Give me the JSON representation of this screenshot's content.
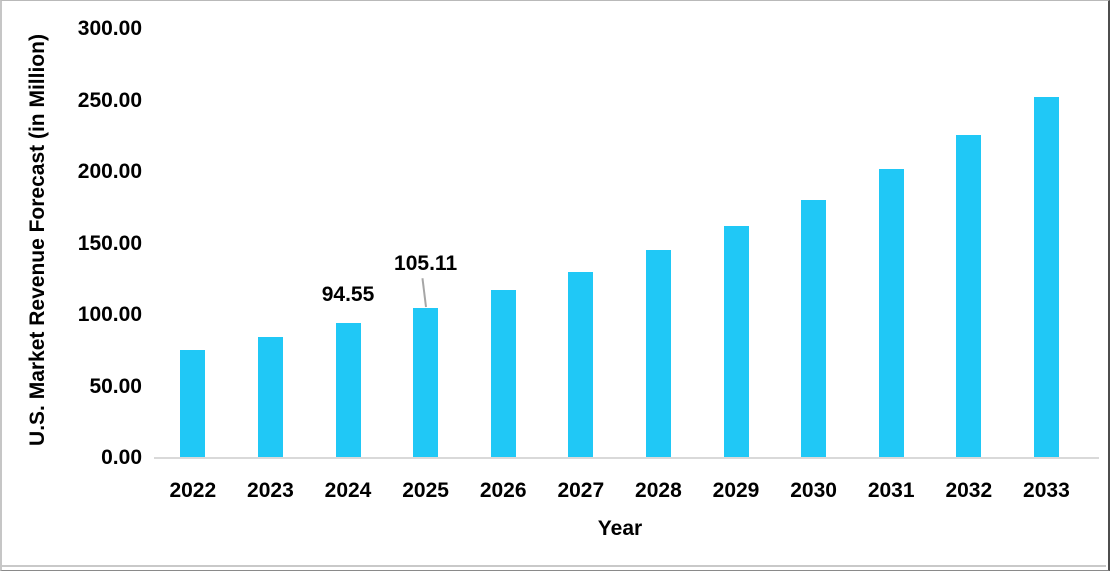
{
  "chart_data": {
    "type": "bar",
    "title": "",
    "categories": [
      "2022",
      "2023",
      "2024",
      "2025",
      "2026",
      "2027",
      "2028",
      "2029",
      "2030",
      "2031",
      "2032",
      "2033"
    ],
    "values": [
      75.5,
      84.5,
      94.55,
      105.11,
      117.8,
      130.4,
      145.8,
      162.1,
      180.7,
      202.0,
      226.1,
      252.7
    ],
    "data_labels": [
      {
        "index": 2,
        "text": "94.55",
        "lift": 16,
        "leader": false
      },
      {
        "index": 3,
        "text": "105.11",
        "lift": 32,
        "leader": true
      }
    ],
    "xlabel": "Year",
    "ylabel": "U.S. Market Revenue Forecast (in Million)",
    "ylim": [
      0,
      300
    ],
    "y_tick_step": 50,
    "y_ticks": [
      "0.00",
      "50.00",
      "100.00",
      "150.00",
      "200.00",
      "250.00",
      "300.00"
    ],
    "grid": false,
    "legend": false,
    "colors": {
      "bar": "#20C8F6",
      "axis_line": "#D9D9D9",
      "leader_line": "#A6A6A6",
      "text": "#000000",
      "background": "#FFFFFF"
    }
  }
}
